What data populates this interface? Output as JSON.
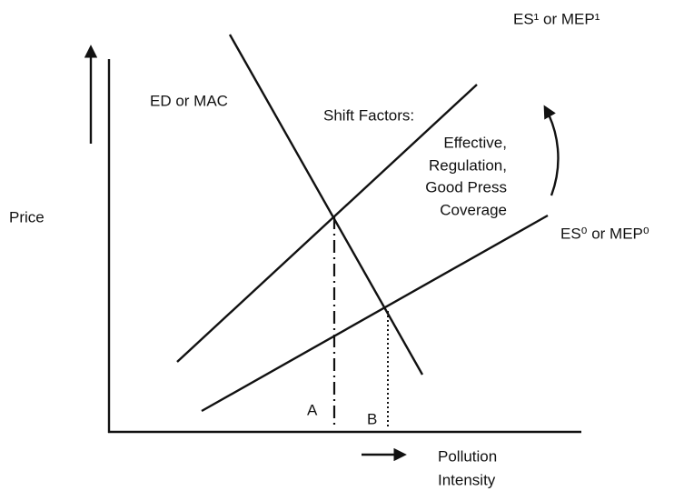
{
  "axes": {
    "y_label": "Price",
    "x_label": [
      "Pollution",
      "Intensity"
    ]
  },
  "curves": {
    "demand": "ED or MAC",
    "supply_new": "ES¹ or MEP¹",
    "supply_old": "ES⁰ or MEP⁰"
  },
  "shift_factors": {
    "title": "Shift Factors:",
    "lines": [
      "Effective,",
      "Regulation,",
      "Good Press",
      "Coverage"
    ]
  },
  "points": {
    "a": "A",
    "b": "B"
  }
}
